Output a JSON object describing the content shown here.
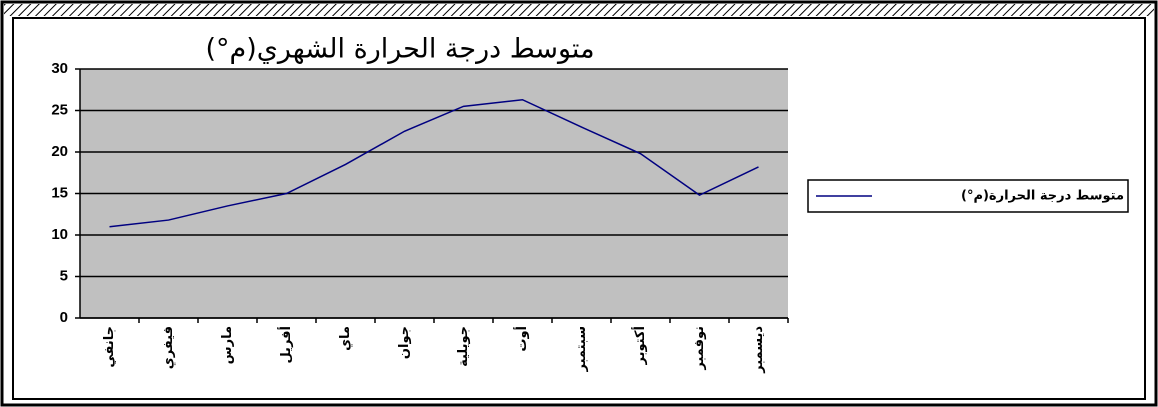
{
  "chart_data": {
    "type": "line",
    "title": "متوسط درجة الحرارة الشهري(م°)",
    "categories": [
      "جانفي",
      "فيفري",
      "مارس",
      "أفريل",
      "ماي",
      "جوان",
      "جويلية",
      "أوت",
      "سبتمبر",
      "أكتوبر",
      "نوفمبر",
      "ديسمبر"
    ],
    "series": [
      {
        "name": "متوسط درجة الحرارة(م°)",
        "color": "#000080",
        "values": [
          11,
          11.8,
          13.5,
          15,
          18.5,
          22.5,
          25.5,
          26.3,
          23,
          19.8,
          14.8,
          18.2
        ]
      }
    ],
    "ylim": [
      0,
      30
    ],
    "yticks": [
      0,
      5,
      10,
      15,
      20,
      25,
      30
    ],
    "grid": true,
    "legend": "right"
  }
}
